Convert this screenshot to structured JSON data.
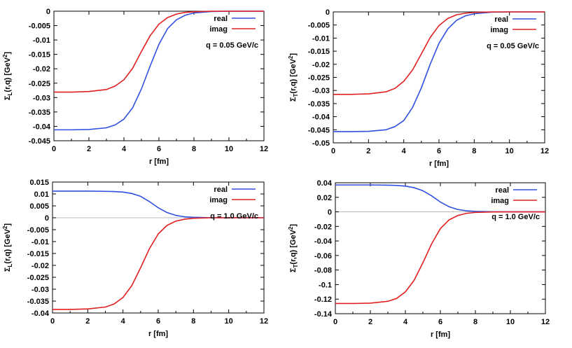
{
  "figure": {
    "title": ""
  },
  "colors": {
    "real": "#3050e0",
    "imag": "#e02020",
    "zero_line": "#bbbbbb"
  },
  "chart_data": [
    {
      "type": "line",
      "id": "tl",
      "title": "",
      "xlabel": "r [fm]",
      "ylabel": "ΣL(r,q) [GeV²]",
      "ylabel_main": "Σ",
      "ylabel_sub": "L",
      "ylabel_rest": "(r,q) [GeV",
      "ylabel_sup": "2",
      "ylabel_close": "]",
      "xlim": [
        0,
        12
      ],
      "ylim": [
        -0.045,
        0
      ],
      "xticks": [
        0,
        2,
        4,
        6,
        8,
        10,
        12
      ],
      "xtick_labels": [
        "0",
        "2",
        "4",
        "6",
        "8",
        "10",
        "12"
      ],
      "yticks": [
        0,
        -0.005,
        -0.01,
        -0.015,
        -0.02,
        -0.025,
        -0.03,
        -0.035,
        -0.04,
        -0.045
      ],
      "ytick_labels": [
        "0",
        "-0.005",
        "-0.01",
        "-0.015",
        "-0.02",
        "-0.025",
        "-0.03",
        "-0.035",
        "-0.04",
        "-0.045"
      ],
      "zero_line": false,
      "annotation": "q = 0.05 GeV/c",
      "legend": [
        "real",
        "imag"
      ],
      "series": [
        {
          "name": "real",
          "color": "#3050e0",
          "x": [
            0,
            1,
            2,
            3,
            3.5,
            4,
            4.5,
            5,
            5.5,
            6,
            6.5,
            7,
            7.5,
            8,
            9,
            10,
            11,
            12
          ],
          "values": [
            -0.0412,
            -0.0412,
            -0.0411,
            -0.0405,
            -0.0395,
            -0.0375,
            -0.0335,
            -0.027,
            -0.019,
            -0.0115,
            -0.006,
            -0.003,
            -0.0014,
            -0.0006,
            -0.0001,
            0,
            0,
            0
          ]
        },
        {
          "name": "imag",
          "color": "#e02020",
          "x": [
            0,
            1,
            2,
            3,
            3.5,
            4,
            4.5,
            5,
            5.5,
            6,
            6.5,
            7,
            7.5,
            8,
            9,
            10,
            11,
            12
          ],
          "values": [
            -0.0281,
            -0.0281,
            -0.0279,
            -0.0272,
            -0.026,
            -0.0238,
            -0.0198,
            -0.014,
            -0.0085,
            -0.0045,
            -0.0022,
            -0.001,
            -0.0004,
            -0.0002,
            0,
            0,
            0,
            0
          ]
        }
      ]
    },
    {
      "type": "line",
      "id": "tr",
      "title": "",
      "xlabel": "r [fm]",
      "ylabel": "ΣT(r,q) [GeV²]",
      "ylabel_main": "Σ",
      "ylabel_sub": "T",
      "ylabel_rest": "(r,q) [GeV",
      "ylabel_sup": "2",
      "ylabel_close": "]",
      "xlim": [
        0,
        12
      ],
      "ylim": [
        -0.05,
        0
      ],
      "xticks": [
        0,
        2,
        4,
        6,
        8,
        10,
        12
      ],
      "xtick_labels": [
        "0",
        "2",
        "4",
        "6",
        "8",
        "10",
        "12"
      ],
      "yticks": [
        0,
        -0.005,
        -0.01,
        -0.015,
        -0.02,
        -0.025,
        -0.03,
        -0.035,
        -0.04,
        -0.045,
        -0.05
      ],
      "ytick_labels": [
        "0",
        "-0.005",
        "-0.01",
        "-0.015",
        "-0.02",
        "-0.025",
        "-0.03",
        "-0.035",
        "-0.04",
        "-0.045",
        "-0.05"
      ],
      "zero_line": false,
      "annotation": "q = 0.05 GeV/c",
      "legend": [
        "real",
        "imag"
      ],
      "series": [
        {
          "name": "real",
          "color": "#3050e0",
          "x": [
            0,
            1,
            2,
            3,
            3.5,
            4,
            4.5,
            5,
            5.5,
            6,
            6.5,
            7,
            7.5,
            8,
            9,
            10,
            11,
            12
          ],
          "values": [
            -0.0457,
            -0.0457,
            -0.0456,
            -0.045,
            -0.0438,
            -0.0415,
            -0.0365,
            -0.029,
            -0.02,
            -0.012,
            -0.0065,
            -0.0032,
            -0.0015,
            -0.0007,
            -0.0001,
            0,
            0,
            0
          ]
        },
        {
          "name": "imag",
          "color": "#e02020",
          "x": [
            0,
            1,
            2,
            3,
            3.5,
            4,
            4.5,
            5,
            5.5,
            6,
            6.5,
            7,
            7.5,
            8,
            9,
            10,
            11,
            12
          ],
          "values": [
            -0.0315,
            -0.0315,
            -0.0313,
            -0.0305,
            -0.0292,
            -0.0265,
            -0.0222,
            -0.016,
            -0.0098,
            -0.0052,
            -0.0025,
            -0.0011,
            -0.0005,
            -0.0002,
            0,
            0,
            0,
            0
          ]
        }
      ]
    },
    {
      "type": "line",
      "id": "bl",
      "title": "",
      "xlabel": "r [fm]",
      "ylabel": "ΣL(r,q) [GeV²]",
      "ylabel_main": "Σ",
      "ylabel_sub": "L",
      "ylabel_rest": "(r,q) [GeV",
      "ylabel_sup": "2",
      "ylabel_close": "]",
      "xlim": [
        0,
        12
      ],
      "ylim": [
        -0.04,
        0.015
      ],
      "xticks": [
        0,
        2,
        4,
        6,
        8,
        10,
        12
      ],
      "xtick_labels": [
        "0",
        "2",
        "4",
        "6",
        "8",
        "10",
        "12"
      ],
      "yticks": [
        0.015,
        0.01,
        0.005,
        0,
        -0.005,
        -0.01,
        -0.015,
        -0.02,
        -0.025,
        -0.03,
        -0.035,
        -0.04
      ],
      "ytick_labels": [
        "0.015",
        "0.01",
        "0.005",
        "0",
        "-0.005",
        "-0.01",
        "-0.015",
        "-0.02",
        "-0.025",
        "-0.03",
        "-0.035",
        "-0.04"
      ],
      "zero_line": true,
      "annotation": "q = 1.0 GeV/c",
      "legend": [
        "real",
        "imag"
      ],
      "series": [
        {
          "name": "real",
          "color": "#3050e0",
          "x": [
            0,
            1,
            2,
            3,
            3.5,
            4,
            4.5,
            5,
            5.5,
            6,
            6.5,
            7,
            7.5,
            8,
            9,
            10,
            11,
            12
          ],
          "values": [
            0.0112,
            0.0112,
            0.0112,
            0.0111,
            0.011,
            0.0108,
            0.0102,
            0.009,
            0.0068,
            0.0042,
            0.0022,
            0.001,
            0.0004,
            0.0002,
            0,
            0,
            0,
            0
          ]
        },
        {
          "name": "imag",
          "color": "#e02020",
          "x": [
            0,
            1,
            2,
            3,
            3.5,
            4,
            4.5,
            5,
            5.5,
            6,
            6.5,
            7,
            7.5,
            8,
            9,
            10,
            11,
            12
          ],
          "values": [
            -0.0385,
            -0.0385,
            -0.0383,
            -0.0375,
            -0.0362,
            -0.0335,
            -0.0285,
            -0.021,
            -0.013,
            -0.0068,
            -0.0032,
            -0.0014,
            -0.0006,
            -0.0002,
            0,
            0,
            0,
            0
          ]
        }
      ]
    },
    {
      "type": "line",
      "id": "br",
      "title": "",
      "xlabel": "r [fm]",
      "ylabel": "ΣT(r,q) [GeV²]",
      "ylabel_main": "Σ",
      "ylabel_sub": "T",
      "ylabel_rest": "(r,q) [GeV",
      "ylabel_sup": "2",
      "ylabel_close": "]",
      "xlim": [
        0,
        12
      ],
      "ylim": [
        -0.14,
        0.04
      ],
      "xticks": [
        0,
        2,
        4,
        6,
        8,
        10,
        12
      ],
      "xtick_labels": [
        "0",
        "2",
        "4",
        "6",
        "8",
        "10",
        "12"
      ],
      "yticks": [
        0.04,
        0.02,
        0,
        -0.02,
        -0.04,
        -0.06,
        -0.08,
        -0.1,
        -0.12,
        -0.14
      ],
      "ytick_labels": [
        "0.04",
        "0.02",
        "0",
        "-0.02",
        "-0.04",
        "-0.06",
        "-0.08",
        "-0.1",
        "-0.12",
        "-0.14"
      ],
      "zero_line": true,
      "annotation": "q = 1.0 GeV/c",
      "legend": [
        "real",
        "imag"
      ],
      "series": [
        {
          "name": "real",
          "color": "#3050e0",
          "x": [
            0,
            1,
            2,
            3,
            3.5,
            4,
            4.5,
            5,
            5.5,
            6,
            6.5,
            7,
            7.5,
            8,
            9,
            10,
            11,
            12
          ],
          "values": [
            0.037,
            0.037,
            0.037,
            0.0367,
            0.0363,
            0.0354,
            0.0332,
            0.029,
            0.022,
            0.0135,
            0.007,
            0.0032,
            0.0014,
            0.0006,
            0.0001,
            0,
            0,
            0
          ]
        },
        {
          "name": "imag",
          "color": "#e02020",
          "x": [
            0,
            1,
            2,
            3,
            3.5,
            4,
            4.5,
            5,
            5.5,
            6,
            6.5,
            7,
            7.5,
            8,
            9,
            10,
            11,
            12
          ],
          "values": [
            -0.126,
            -0.126,
            -0.1255,
            -0.123,
            -0.119,
            -0.11,
            -0.094,
            -0.07,
            -0.044,
            -0.023,
            -0.011,
            -0.005,
            -0.002,
            -0.0008,
            -0.0001,
            0,
            0,
            0
          ]
        }
      ]
    }
  ]
}
